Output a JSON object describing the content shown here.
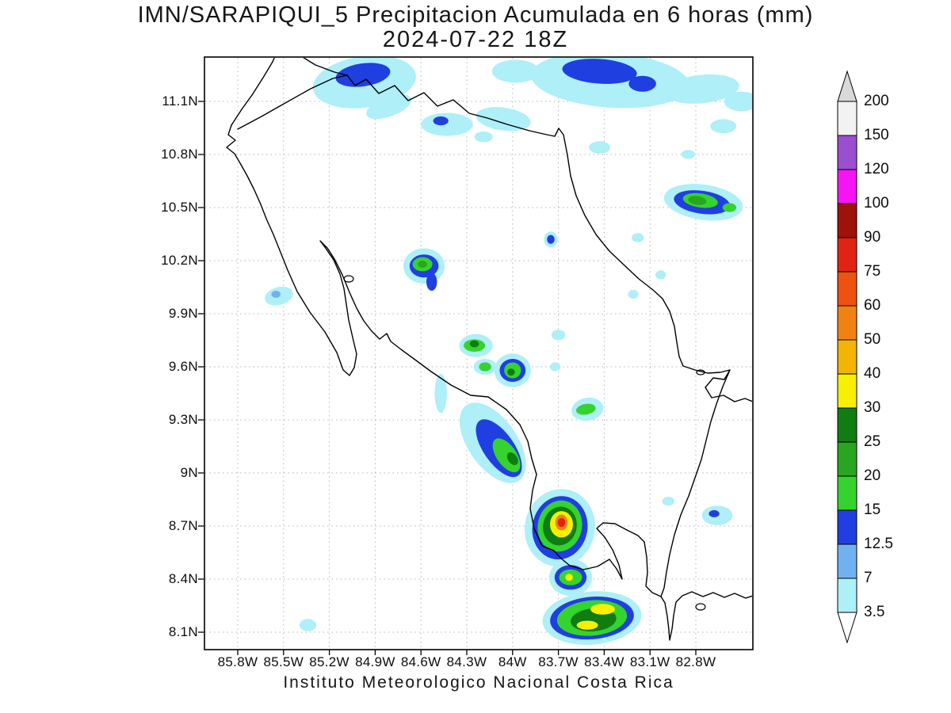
{
  "title": "IMN/SARAPIQUI_5 Precipitacion Acumulada en 6 horas (mm)",
  "subtitle": "2024-07-22 18Z",
  "footer": "Instituto Meteorologico Nacional Costa Rica",
  "axes": {
    "lat_ticks": [
      {
        "label": "11.1N",
        "value": 11.1
      },
      {
        "label": "10.8N",
        "value": 10.8
      },
      {
        "label": "10.5N",
        "value": 10.5
      },
      {
        "label": "10.2N",
        "value": 10.2
      },
      {
        "label": "9.9N",
        "value": 9.9
      },
      {
        "label": "9.6N",
        "value": 9.6
      },
      {
        "label": "9.3N",
        "value": 9.3
      },
      {
        "label": "9N",
        "value": 9
      },
      {
        "label": "8.7N",
        "value": 8.7
      },
      {
        "label": "8.4N",
        "value": 8.4
      },
      {
        "label": "8.1N",
        "value": 8.1
      }
    ],
    "lon_ticks": [
      {
        "label": "85.8W",
        "value": 85.8
      },
      {
        "label": "85.5W",
        "value": 85.5
      },
      {
        "label": "85.2W",
        "value": 85.2
      },
      {
        "label": "84.9W",
        "value": 84.9
      },
      {
        "label": "84.6W",
        "value": 84.6
      },
      {
        "label": "84.3W",
        "value": 84.3
      },
      {
        "label": "84W",
        "value": 84
      },
      {
        "label": "83.7W",
        "value": 83.7
      },
      {
        "label": "83.4W",
        "value": 83.4
      },
      {
        "label": "83.1W",
        "value": 83.1
      },
      {
        "label": "82.8W",
        "value": 82.8
      }
    ]
  },
  "colorbar": {
    "units": "mm",
    "levels": [
      3.5,
      7,
      12.5,
      15,
      20,
      25,
      30,
      40,
      50,
      60,
      75,
      90,
      100,
      120,
      150,
      200
    ],
    "labels": [
      "3.5",
      "7",
      "12.5",
      "15",
      "20",
      "25",
      "30",
      "40",
      "50",
      "60",
      "75",
      "90",
      "100",
      "120",
      "150",
      "200"
    ],
    "colors": [
      "#aeeff8",
      "#70b2f0",
      "#1f3fe0",
      "#35d32e",
      "#28a61f",
      "#0f7d12",
      "#f8f000",
      "#f2b405",
      "#f08214",
      "#ee5211",
      "#e02413",
      "#9e120b",
      "#f414f4",
      "#9a4fd0",
      "#f2f2f2"
    ],
    "over_color": "#d9d9d9",
    "under_color": "#ffffff"
  },
  "chart_data": {
    "type": "heatmap",
    "description": "Shaded 6h accumulated precipitation cells; lon in degrees West, lat in degrees North, w/h ellipse extents in degrees, mm = lower shading level",
    "cells": [
      {
        "lon": 84.97,
        "lat": 11.21,
        "w": 0.68,
        "h": 0.29,
        "rot": -8,
        "mm": 3.5
      },
      {
        "lon": 84.81,
        "lat": 11.07,
        "w": 0.31,
        "h": 0.11,
        "rot": -20,
        "mm": 3.5
      },
      {
        "lon": 84.98,
        "lat": 11.25,
        "w": 0.36,
        "h": 0.13,
        "rot": -8,
        "mm": 12.5
      },
      {
        "lon": 84.43,
        "lat": 10.97,
        "w": 0.34,
        "h": 0.13,
        "rot": 0,
        "mm": 3.5
      },
      {
        "lon": 84.47,
        "lat": 10.99,
        "w": 0.1,
        "h": 0.05,
        "rot": 0,
        "mm": 12.5
      },
      {
        "lon": 84.06,
        "lat": 11.0,
        "w": 0.36,
        "h": 0.13,
        "rot": 8,
        "mm": 3.5
      },
      {
        "lon": 84.19,
        "lat": 10.9,
        "w": 0.12,
        "h": 0.06,
        "rot": 0,
        "mm": 3.5
      },
      {
        "lon": 83.98,
        "lat": 11.27,
        "w": 0.31,
        "h": 0.13,
        "rot": 0,
        "mm": 3.5
      },
      {
        "lon": 83.36,
        "lat": 11.22,
        "w": 1.04,
        "h": 0.31,
        "rot": 4,
        "mm": 3.5
      },
      {
        "lon": 82.76,
        "lat": 11.17,
        "w": 0.49,
        "h": 0.16,
        "rot": -6,
        "mm": 3.5
      },
      {
        "lon": 82.5,
        "lat": 11.1,
        "w": 0.23,
        "h": 0.11,
        "rot": 0,
        "mm": 3.5
      },
      {
        "lon": 83.43,
        "lat": 11.27,
        "w": 0.49,
        "h": 0.14,
        "rot": 4,
        "mm": 12.5
      },
      {
        "lon": 83.15,
        "lat": 11.2,
        "w": 0.18,
        "h": 0.09,
        "rot": 0,
        "mm": 12.5
      },
      {
        "lon": 82.62,
        "lat": 10.96,
        "w": 0.17,
        "h": 0.08,
        "rot": 0,
        "mm": 3.5
      },
      {
        "lon": 83.43,
        "lat": 10.84,
        "w": 0.14,
        "h": 0.07,
        "rot": 0,
        "mm": 3.5
      },
      {
        "lon": 82.85,
        "lat": 10.8,
        "w": 0.09,
        "h": 0.05,
        "rot": 0,
        "mm": 3.5
      },
      {
        "lon": 82.75,
        "lat": 10.53,
        "w": 0.52,
        "h": 0.2,
        "rot": 8,
        "mm": 3.5
      },
      {
        "lon": 82.76,
        "lat": 10.53,
        "w": 0.37,
        "h": 0.13,
        "rot": 8,
        "mm": 12.5
      },
      {
        "lon": 82.77,
        "lat": 10.54,
        "w": 0.23,
        "h": 0.08,
        "rot": 8,
        "mm": 15
      },
      {
        "lon": 82.79,
        "lat": 10.54,
        "w": 0.12,
        "h": 0.05,
        "rot": 8,
        "mm": 20
      },
      {
        "lon": 82.58,
        "lat": 10.5,
        "w": 0.09,
        "h": 0.05,
        "rot": 0,
        "mm": 15
      },
      {
        "lon": 83.75,
        "lat": 10.32,
        "w": 0.09,
        "h": 0.09,
        "rot": 0,
        "mm": 3.5
      },
      {
        "lon": 83.75,
        "lat": 10.32,
        "w": 0.05,
        "h": 0.05,
        "rot": 0,
        "mm": 12.5
      },
      {
        "lon": 83.18,
        "lat": 10.33,
        "w": 0.08,
        "h": 0.05,
        "rot": 0,
        "mm": 3.5
      },
      {
        "lon": 83.03,
        "lat": 10.12,
        "w": 0.07,
        "h": 0.05,
        "rot": 0,
        "mm": 3.5
      },
      {
        "lon": 83.21,
        "lat": 10.01,
        "w": 0.07,
        "h": 0.05,
        "rot": 0,
        "mm": 3.5
      },
      {
        "lon": 84.58,
        "lat": 10.17,
        "w": 0.27,
        "h": 0.2,
        "rot": 0,
        "mm": 3.5
      },
      {
        "lon": 84.53,
        "lat": 10.08,
        "w": 0.07,
        "h": 0.1,
        "rot": 0,
        "mm": 12.5
      },
      {
        "lon": 84.58,
        "lat": 10.17,
        "w": 0.19,
        "h": 0.13,
        "rot": 0,
        "mm": 12.5
      },
      {
        "lon": 84.59,
        "lat": 10.18,
        "w": 0.13,
        "h": 0.08,
        "rot": 0,
        "mm": 15
      },
      {
        "lon": 84.59,
        "lat": 10.18,
        "w": 0.06,
        "h": 0.04,
        "rot": 0,
        "mm": 20
      },
      {
        "lon": 85.53,
        "lat": 10.0,
        "w": 0.19,
        "h": 0.1,
        "rot": -15,
        "mm": 3.5
      },
      {
        "lon": 85.55,
        "lat": 10.01,
        "w": 0.06,
        "h": 0.04,
        "rot": 0,
        "mm": 7
      },
      {
        "lon": 83.7,
        "lat": 9.78,
        "w": 0.09,
        "h": 0.06,
        "rot": 0,
        "mm": 3.5
      },
      {
        "lon": 84.24,
        "lat": 9.72,
        "w": 0.22,
        "h": 0.13,
        "rot": 0,
        "mm": 3.5
      },
      {
        "lon": 84.25,
        "lat": 9.72,
        "w": 0.14,
        "h": 0.07,
        "rot": 0,
        "mm": 15
      },
      {
        "lon": 84.25,
        "lat": 9.73,
        "w": 0.06,
        "h": 0.04,
        "rot": 0,
        "mm": 25
      },
      {
        "lon": 84.18,
        "lat": 9.6,
        "w": 0.15,
        "h": 0.09,
        "rot": 0,
        "mm": 3.5
      },
      {
        "lon": 84.18,
        "lat": 9.6,
        "w": 0.08,
        "h": 0.05,
        "rot": 0,
        "mm": 15
      },
      {
        "lon": 83.72,
        "lat": 9.6,
        "w": 0.07,
        "h": 0.05,
        "rot": 0,
        "mm": 3.5
      },
      {
        "lon": 84.0,
        "lat": 9.58,
        "w": 0.24,
        "h": 0.19,
        "rot": 0,
        "mm": 3.5
      },
      {
        "lon": 84.0,
        "lat": 9.58,
        "w": 0.17,
        "h": 0.13,
        "rot": 0,
        "mm": 12.5
      },
      {
        "lon": 84.0,
        "lat": 9.58,
        "w": 0.11,
        "h": 0.09,
        "rot": 0,
        "mm": 15
      },
      {
        "lon": 84.01,
        "lat": 9.57,
        "w": 0.05,
        "h": 0.04,
        "rot": 0,
        "mm": 25
      },
      {
        "lon": 84.47,
        "lat": 9.45,
        "w": 0.08,
        "h": 0.22,
        "rot": 0,
        "mm": 3.5
      },
      {
        "lon": 83.51,
        "lat": 9.36,
        "w": 0.21,
        "h": 0.13,
        "rot": -10,
        "mm": 3.5
      },
      {
        "lon": 83.52,
        "lat": 9.36,
        "w": 0.13,
        "h": 0.06,
        "rot": -10,
        "mm": 15
      },
      {
        "lon": 84.13,
        "lat": 9.17,
        "w": 0.32,
        "h": 0.52,
        "rot": -35,
        "mm": 3.5
      },
      {
        "lon": 84.09,
        "lat": 9.14,
        "w": 0.2,
        "h": 0.38,
        "rot": -35,
        "mm": 12.5
      },
      {
        "lon": 84.04,
        "lat": 9.1,
        "w": 0.13,
        "h": 0.22,
        "rot": -35,
        "mm": 15
      },
      {
        "lon": 84.0,
        "lat": 9.08,
        "w": 0.06,
        "h": 0.08,
        "rot": -35,
        "mm": 25
      },
      {
        "lon": 83.69,
        "lat": 8.69,
        "w": 0.46,
        "h": 0.44,
        "rot": 12,
        "mm": 3.5
      },
      {
        "lon": 83.69,
        "lat": 8.69,
        "w": 0.36,
        "h": 0.36,
        "rot": 12,
        "mm": 12.5
      },
      {
        "lon": 83.69,
        "lat": 8.7,
        "w": 0.29,
        "h": 0.29,
        "rot": 12,
        "mm": 15
      },
      {
        "lon": 83.69,
        "lat": 8.7,
        "w": 0.22,
        "h": 0.22,
        "rot": 12,
        "mm": 25
      },
      {
        "lon": 83.68,
        "lat": 8.71,
        "w": 0.15,
        "h": 0.15,
        "rot": 0,
        "mm": 30
      },
      {
        "lon": 83.68,
        "lat": 8.72,
        "w": 0.08,
        "h": 0.09,
        "rot": 0,
        "mm": 50
      },
      {
        "lon": 83.68,
        "lat": 8.72,
        "w": 0.05,
        "h": 0.05,
        "rot": 0,
        "mm": 75
      },
      {
        "lon": 83.62,
        "lat": 8.41,
        "w": 0.28,
        "h": 0.21,
        "rot": 0,
        "mm": 3.5
      },
      {
        "lon": 83.62,
        "lat": 8.41,
        "w": 0.21,
        "h": 0.14,
        "rot": 0,
        "mm": 12.5
      },
      {
        "lon": 83.62,
        "lat": 8.41,
        "w": 0.15,
        "h": 0.09,
        "rot": 0,
        "mm": 15
      },
      {
        "lon": 83.63,
        "lat": 8.41,
        "w": 0.05,
        "h": 0.04,
        "rot": 0,
        "mm": 30
      },
      {
        "lon": 83.48,
        "lat": 8.18,
        "w": 0.65,
        "h": 0.3,
        "rot": -5,
        "mm": 3.5
      },
      {
        "lon": 83.48,
        "lat": 8.18,
        "w": 0.55,
        "h": 0.24,
        "rot": -5,
        "mm": 12.5
      },
      {
        "lon": 83.48,
        "lat": 8.18,
        "w": 0.46,
        "h": 0.2,
        "rot": -5,
        "mm": 15
      },
      {
        "lon": 83.47,
        "lat": 8.17,
        "w": 0.3,
        "h": 0.13,
        "rot": -5,
        "mm": 25
      },
      {
        "lon": 83.41,
        "lat": 8.23,
        "w": 0.16,
        "h": 0.06,
        "rot": 0,
        "mm": 30
      },
      {
        "lon": 83.51,
        "lat": 8.14,
        "w": 0.14,
        "h": 0.05,
        "rot": 0,
        "mm": 30
      },
      {
        "lon": 82.66,
        "lat": 8.76,
        "w": 0.2,
        "h": 0.11,
        "rot": 0,
        "mm": 3.5
      },
      {
        "lon": 82.68,
        "lat": 8.77,
        "w": 0.07,
        "h": 0.04,
        "rot": 0,
        "mm": 12.5
      },
      {
        "lon": 82.98,
        "lat": 8.84,
        "w": 0.08,
        "h": 0.05,
        "rot": 0,
        "mm": 3.5
      },
      {
        "lon": 85.34,
        "lat": 8.14,
        "w": 0.11,
        "h": 0.07,
        "rot": 0,
        "mm": 3.5
      }
    ]
  }
}
